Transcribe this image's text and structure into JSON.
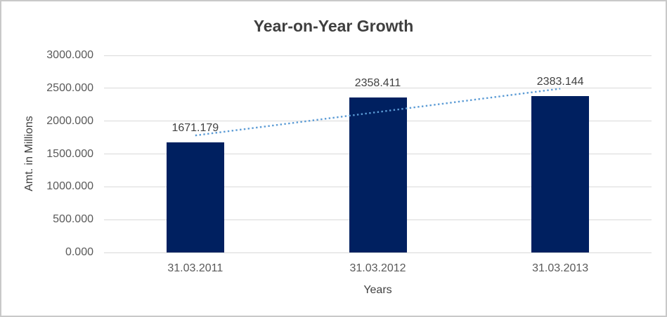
{
  "window": {
    "background": "#ffffff",
    "border_color": "#c9c9c9"
  },
  "chart_data": {
    "type": "bar",
    "title": "Year-on-Year Growth",
    "xlabel": "Years",
    "ylabel": "Amt. in Millions",
    "categories": [
      "31.03.2011",
      "31.03.2012",
      "31.03.2013"
    ],
    "values": [
      1671.179,
      2358.411,
      2383.144
    ],
    "data_labels": [
      "1671.179",
      "2358.411",
      "2383.144"
    ],
    "ylim": [
      0,
      3000
    ],
    "ytick_step": 500,
    "ytick_labels": [
      "0.000",
      "500.000",
      "1000.000",
      "1500.000",
      "2000.000",
      "2500.000",
      "3000.000"
    ],
    "grid": true,
    "legend": "none",
    "bar_color": "#002060",
    "gridline_color": "#d9d9d9",
    "text_color_title": "#3f3f3f",
    "text_color_axis": "#595959",
    "text_color_labels": "#404040",
    "trendline": {
      "type": "linear",
      "style": "dotted",
      "color": "#5b9bd5"
    }
  }
}
